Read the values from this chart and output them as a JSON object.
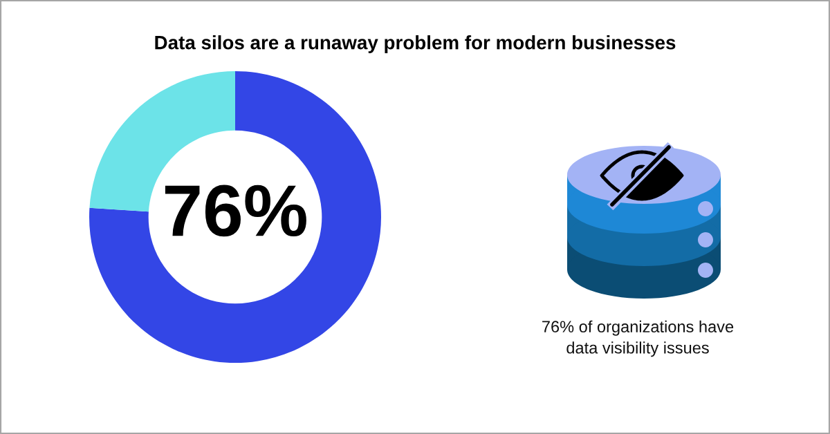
{
  "chart_data": {
    "type": "donut",
    "title": "Data silos are a runaway problem for modern businesses",
    "categories": [
      null,
      null
    ],
    "values": [
      76,
      24
    ],
    "colors": [
      "#3346e6",
      "#6ce3e8"
    ],
    "annotations": [
      "76%",
      "76% of organizations have\ndata visibility issues"
    ]
  }
}
